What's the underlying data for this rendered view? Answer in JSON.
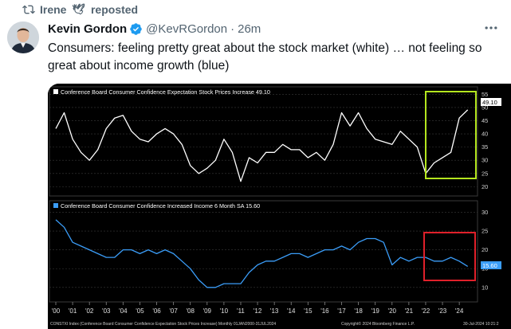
{
  "repost": {
    "icon": "repost-icon",
    "user": "Irene",
    "decoration": "dove-icon",
    "label": "reposted"
  },
  "tweet": {
    "author": "Kevin Gordon",
    "verified_icon": "verified-badge-icon",
    "handle": "@KevRGordon",
    "separator": "·",
    "time": "26m",
    "more_icon": "more-options-icon",
    "text": "Consumers: feeling pretty great about the stock market (white) … not feeling so great about income growth (blue)"
  },
  "colors": {
    "white_series": "#ffffff",
    "blue_series": "#3b9df8",
    "green_box": "#b4e61e",
    "red_box": "#e0202a",
    "panel_bg": "#000000"
  },
  "chart_data": [
    {
      "type": "line",
      "title": "Conference Board Consumer Confidence Expectation Stock Prices Increase 49.10",
      "last_value_label": "49.10",
      "ylim": [
        18,
        56
      ],
      "yticks": [
        "55",
        "50",
        "45",
        "40",
        "35",
        "30",
        "25",
        "20"
      ],
      "highlight": "green box around the 2022–2024 rise",
      "series": [
        {
          "name": "Conference Board Consumer Confidence Expectation Stock Prices Increase",
          "x": [
            2000.0,
            2000.5,
            2001.0,
            2001.5,
            2002.0,
            2002.5,
            2003.0,
            2003.5,
            2004.0,
            2004.5,
            2005.0,
            2005.5,
            2006.0,
            2006.5,
            2007.0,
            2007.5,
            2008.0,
            2008.5,
            2009.0,
            2009.5,
            2010.0,
            2010.5,
            2011.0,
            2011.5,
            2012.0,
            2012.5,
            2013.0,
            2013.5,
            2014.0,
            2014.5,
            2015.0,
            2015.5,
            2016.0,
            2016.5,
            2017.0,
            2017.5,
            2018.0,
            2018.5,
            2019.0,
            2019.5,
            2020.0,
            2020.5,
            2021.0,
            2021.5,
            2022.0,
            2022.5,
            2023.0,
            2023.5,
            2024.0,
            2024.5
          ],
          "y": [
            42,
            48,
            38,
            33,
            30,
            34,
            42,
            46,
            47,
            41,
            38,
            37,
            40,
            42,
            40,
            36,
            28,
            25,
            27,
            30,
            38,
            33,
            22,
            31,
            29,
            33,
            33,
            36,
            34,
            34,
            31,
            33,
            30,
            36,
            48,
            43,
            48,
            42,
            38,
            37,
            36,
            41,
            38,
            35,
            25,
            29,
            31,
            33,
            46,
            49.1
          ]
        }
      ]
    },
    {
      "type": "line",
      "title": "Conference Board Consumer Confidence Increased Income 6 Month SA 15.60",
      "last_value_label": "15.60",
      "ylim": [
        7,
        32
      ],
      "yticks": [
        "30",
        "25",
        "20",
        "15",
        "10"
      ],
      "xlabels": [
        "'00",
        "'01",
        "'02",
        "'03",
        "'04",
        "'05",
        "'06",
        "'07",
        "'08",
        "'09",
        "'10",
        "'11",
        "'12",
        "'13",
        "'14",
        "'15",
        "'16",
        "'17",
        "'18",
        "'19",
        "'20",
        "'21",
        "'22",
        "'23",
        "'24"
      ],
      "highlight": "red box around 2022–2024",
      "series": [
        {
          "name": "Conference Board Consumer Confidence Increased Income 6 Month SA",
          "x": [
            2000.0,
            2000.5,
            2001.0,
            2001.5,
            2002.0,
            2002.5,
            2003.0,
            2003.5,
            2004.0,
            2004.5,
            2005.0,
            2005.5,
            2006.0,
            2006.5,
            2007.0,
            2007.5,
            2008.0,
            2008.5,
            2009.0,
            2009.5,
            2010.0,
            2010.5,
            2011.0,
            2011.5,
            2012.0,
            2012.5,
            2013.0,
            2013.5,
            2014.0,
            2014.5,
            2015.0,
            2015.5,
            2016.0,
            2016.5,
            2017.0,
            2017.5,
            2018.0,
            2018.5,
            2019.0,
            2019.5,
            2020.0,
            2020.5,
            2021.0,
            2021.5,
            2022.0,
            2022.5,
            2023.0,
            2023.5,
            2024.0,
            2024.5
          ],
          "y": [
            28,
            26,
            22,
            21,
            20,
            19,
            18,
            18,
            20,
            20,
            19,
            20,
            19,
            20,
            19,
            17,
            15,
            12,
            10,
            10,
            11,
            11,
            11,
            14,
            16,
            17,
            17,
            18,
            19,
            19,
            18,
            19,
            20,
            20,
            21,
            20,
            22,
            23,
            23,
            22,
            16,
            18,
            17,
            18,
            18,
            17,
            17,
            18,
            17,
            15.6
          ]
        }
      ]
    }
  ],
  "footer": {
    "left": "CONSTXI Index (Conference Board Consumer Confidence Expectation Stock Prices Increase)  Monthly 01JAN2000-31JUL2024",
    "middle": "Copyright© 2024 Bloomberg Finance L.P.",
    "right": "30-Jul-2024 10:21:2"
  }
}
